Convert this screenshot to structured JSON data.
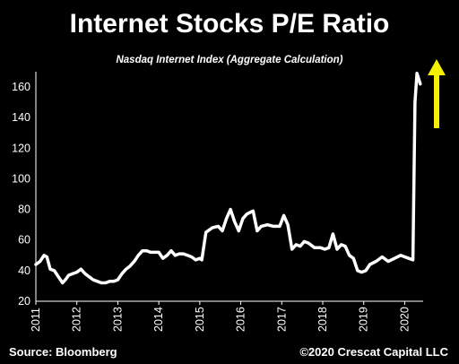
{
  "title": "Internet Stocks P/E Ratio",
  "subtitle": "Nasdaq Internet Index (Aggregate Calculation)",
  "footer": {
    "source": "Source: Bloomberg",
    "copyright": "©2020 Crescat Capital LLC"
  },
  "colors": {
    "line": "#ffffff",
    "arrow": "#f5ef00",
    "background": "#000000"
  },
  "chart_data": {
    "type": "line",
    "title": "Internet Stocks P/E Ratio",
    "subtitle": "Nasdaq Internet Index (Aggregate Calculation)",
    "xlabel": "",
    "ylabel": "",
    "xlim": [
      2011.0,
      2020.45
    ],
    "ylim": [
      20,
      170
    ],
    "yticks": [
      20,
      40,
      60,
      80,
      100,
      120,
      140,
      160
    ],
    "xticks": [
      "2011",
      "2012",
      "2013",
      "2014",
      "2015",
      "2016",
      "2017",
      "2018",
      "2019",
      "2020"
    ],
    "grid": false,
    "legend": "none",
    "annotations": [
      "yellow upward arrow at right edge"
    ],
    "series": [
      {
        "x": [
          2011.0,
          2011.1,
          2011.2,
          2011.27,
          2011.35,
          2011.45,
          2011.55,
          2011.65,
          2011.72,
          2011.8,
          2011.9,
          2012.0,
          2012.1,
          2012.2,
          2012.3,
          2012.4,
          2012.5,
          2012.6,
          2012.7,
          2012.8,
          2012.9,
          2013.0,
          2013.1,
          2013.2,
          2013.3,
          2013.4,
          2013.5,
          2013.6,
          2013.7,
          2013.8,
          2013.9,
          2014.0,
          2014.1,
          2014.2,
          2014.3,
          2014.4,
          2014.5,
          2014.6,
          2014.7,
          2014.8,
          2014.9,
          2015.0,
          2015.05,
          2015.15,
          2015.3,
          2015.45,
          2015.55,
          2015.65,
          2015.75,
          2015.85,
          2015.95,
          2016.05,
          2016.15,
          2016.3,
          2016.4,
          2016.5,
          2016.65,
          2016.8,
          2016.95,
          2017.05,
          2017.15,
          2017.25,
          2017.35,
          2017.45,
          2017.55,
          2017.65,
          2017.8,
          2017.95,
          2018.05,
          2018.15,
          2018.25,
          2018.35,
          2018.45,
          2018.55,
          2018.65,
          2018.75,
          2018.85,
          2018.95,
          2019.05,
          2019.15,
          2019.3,
          2019.45,
          2019.6,
          2019.75,
          2019.9,
          2020.0,
          2020.1,
          2020.2,
          2020.25,
          2020.3,
          2020.38
        ],
        "y": [
          44,
          46,
          50,
          49,
          41,
          40,
          36,
          32,
          34,
          37,
          38,
          39,
          41,
          38,
          36,
          34,
          33,
          32,
          32,
          33,
          33,
          34,
          38,
          41,
          43,
          46,
          50,
          53,
          53,
          52,
          52,
          52,
          48,
          50,
          53,
          50,
          51,
          51,
          50,
          49,
          47,
          48,
          47,
          65,
          68,
          69,
          66,
          74,
          80,
          72,
          66,
          74,
          77,
          79,
          66,
          69,
          70,
          69,
          69,
          76,
          70,
          54,
          57,
          56,
          59,
          58,
          55,
          55,
          54,
          55,
          64,
          54,
          57,
          56,
          50,
          48,
          40,
          39,
          40,
          44,
          46,
          49,
          46,
          48,
          50,
          49,
          48,
          47,
          150,
          169,
          162
        ]
      }
    ]
  }
}
